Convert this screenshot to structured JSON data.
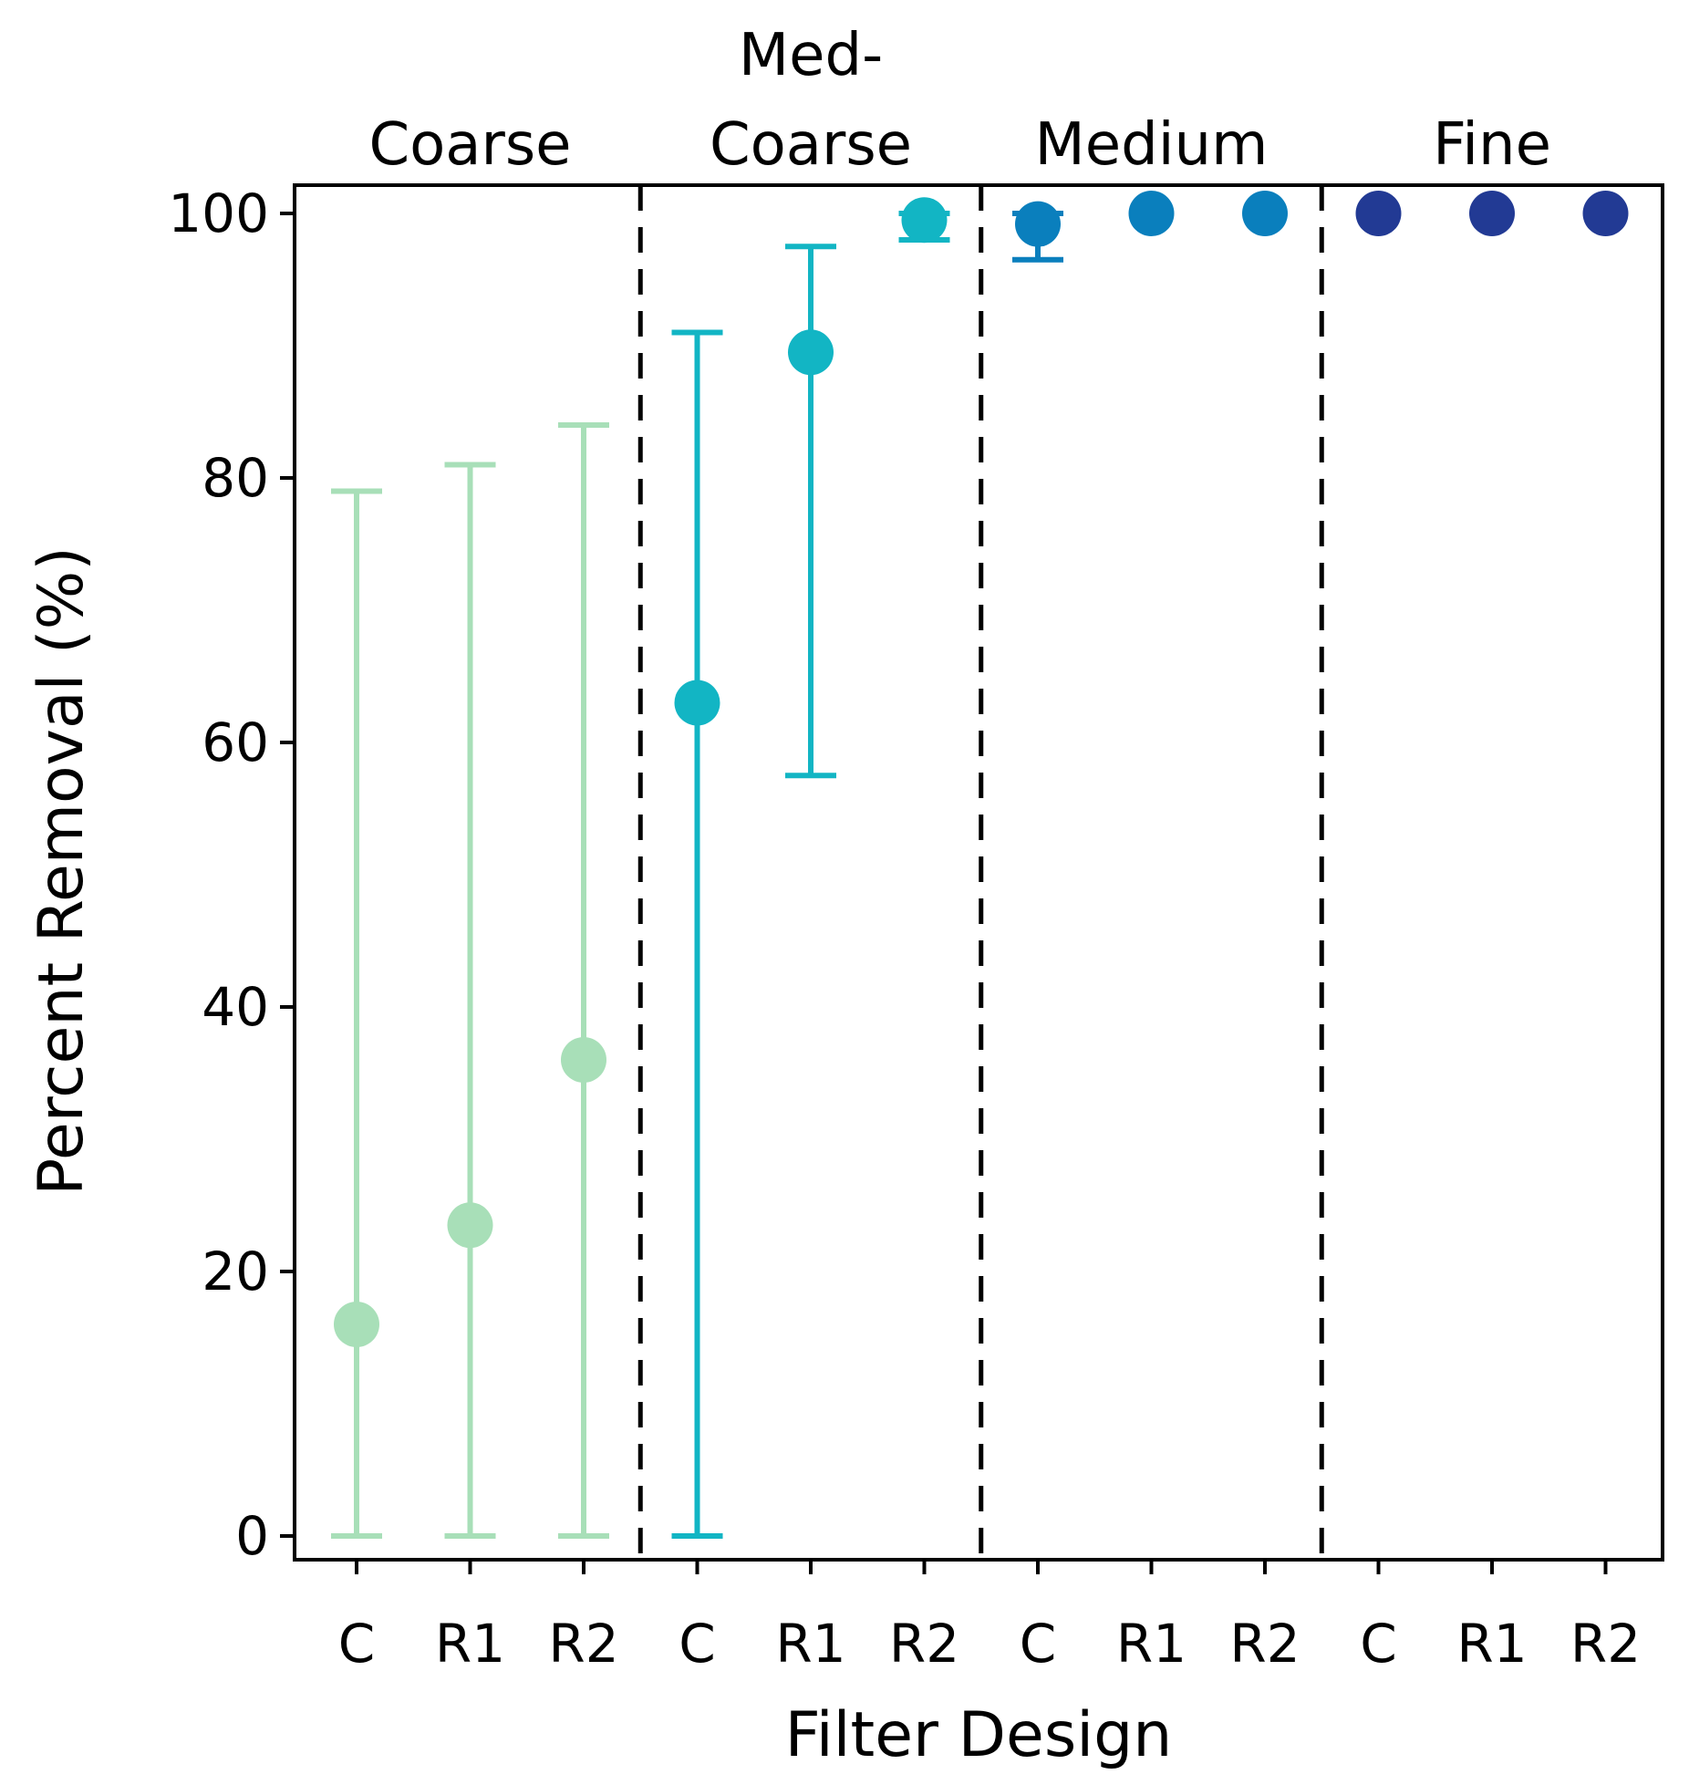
{
  "chart_data": {
    "type": "scatter",
    "xlabel": "Filter Design",
    "ylabel": "Percent Removal (%)",
    "ylim": [
      -1,
      102
    ],
    "yticks": [
      "0",
      "20",
      "40",
      "60",
      "80",
      "100"
    ],
    "grid": false,
    "categories": [
      "C",
      "R1",
      "R2",
      "C",
      "R1",
      "R2",
      "C",
      "R1",
      "R2",
      "C",
      "R1",
      "R2"
    ],
    "groups": [
      {
        "label": "Coarse",
        "label_lines": [
          "Coarse"
        ],
        "color": "#a8dfb8",
        "points": [
          {
            "x": "C",
            "y": 16,
            "lower": 0,
            "upper": 79
          },
          {
            "x": "R1",
            "y": 23.5,
            "lower": 0,
            "upper": 81
          },
          {
            "x": "R2",
            "y": 36,
            "lower": 0,
            "upper": 84
          }
        ]
      },
      {
        "label": "Med-Coarse",
        "label_lines": [
          "Med-",
          "Coarse"
        ],
        "color": "#12b5c4",
        "points": [
          {
            "x": "C",
            "y": 63,
            "lower": 0,
            "upper": 91
          },
          {
            "x": "R1",
            "y": 89.5,
            "lower": 57.5,
            "upper": 97.5
          },
          {
            "x": "R2",
            "y": 99.5,
            "lower": 98,
            "upper": 100
          }
        ]
      },
      {
        "label": "Medium",
        "label_lines": [
          "Medium"
        ],
        "color": "#0a7fbd",
        "points": [
          {
            "x": "C",
            "y": 99.2,
            "lower": 96.5,
            "upper": 100
          },
          {
            "x": "R1",
            "y": 100,
            "lower": 100,
            "upper": 100
          },
          {
            "x": "R2",
            "y": 100,
            "lower": 100,
            "upper": 100
          }
        ]
      },
      {
        "label": "Fine",
        "label_lines": [
          "Fine"
        ],
        "color": "#223a94",
        "points": [
          {
            "x": "C",
            "y": 100,
            "lower": 100,
            "upper": 100
          },
          {
            "x": "R1",
            "y": 100,
            "lower": 100,
            "upper": 100
          },
          {
            "x": "R2",
            "y": 100,
            "lower": 100,
            "upper": 100
          }
        ]
      }
    ]
  }
}
